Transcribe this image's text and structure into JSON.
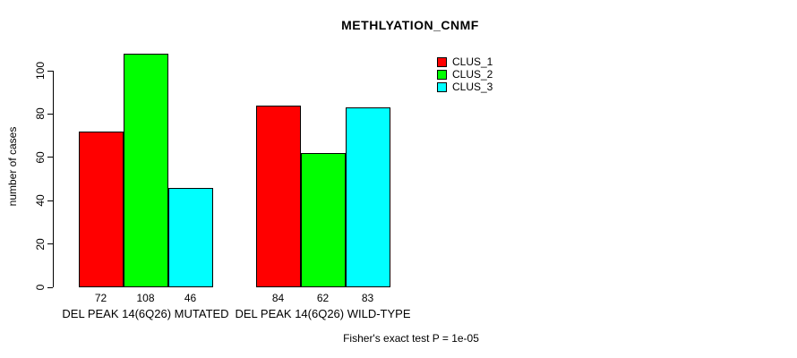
{
  "title": "METHLYATION_CNMF",
  "annotation": "Fisher's exact test P = 1e-05",
  "legend": {
    "items": [
      {
        "label": "CLUS_1",
        "color": "#ff0000"
      },
      {
        "label": "CLUS_2",
        "color": "#00ff00"
      },
      {
        "label": "CLUS_3",
        "color": "#00ffff"
      }
    ]
  },
  "chart_data": {
    "type": "bar",
    "title": "METHLYATION_CNMF",
    "xlabel": "",
    "ylabel": "number of cases",
    "categories": [
      "DEL PEAK 14(6Q26) MUTATED",
      "DEL PEAK 14(6Q26) WILD-TYPE"
    ],
    "series": [
      {
        "name": "CLUS_1",
        "color": "#ff0000",
        "values": [
          72,
          84
        ]
      },
      {
        "name": "CLUS_2",
        "color": "#00ff00",
        "values": [
          108,
          62
        ]
      },
      {
        "name": "CLUS_3",
        "color": "#00ffff",
        "values": [
          46,
          83
        ]
      }
    ],
    "bar_value_labels": [
      [
        72,
        108,
        46
      ],
      [
        84,
        62,
        83
      ]
    ],
    "yticks": [
      0,
      20,
      40,
      60,
      80,
      100
    ],
    "ylim": [
      0,
      108
    ],
    "grid": false,
    "legend_position": "top-right",
    "annotation": "Fisher's exact test P = 1e-05"
  }
}
